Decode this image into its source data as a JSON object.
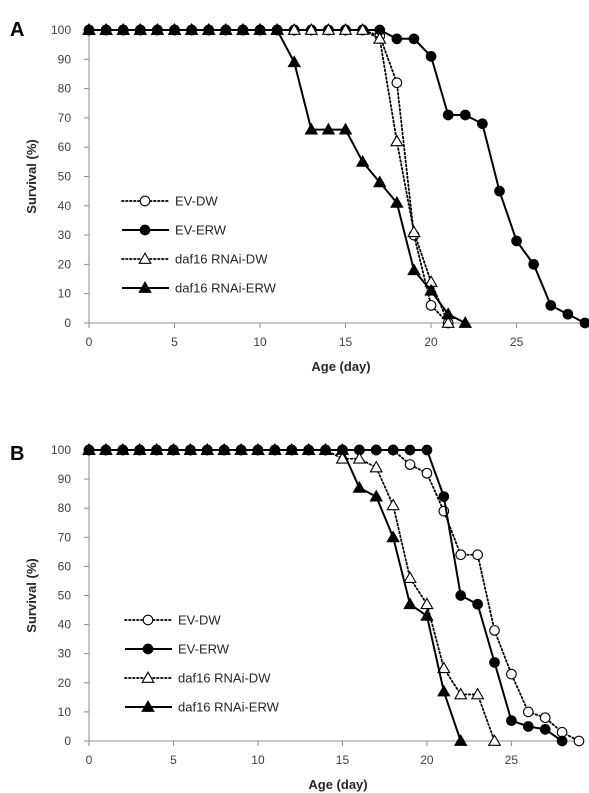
{
  "chart_data": [
    {
      "type": "line",
      "panel_label": "A",
      "xlabel": "Age (day)",
      "ylabel": "Survival (%)",
      "xlim": [
        0,
        29
      ],
      "ylim": [
        0,
        100
      ],
      "xticks": [
        0,
        5,
        10,
        15,
        20,
        25
      ],
      "yticks": [
        0,
        10,
        20,
        30,
        40,
        50,
        60,
        70,
        80,
        90,
        100
      ],
      "grid": false,
      "legend_position": "left-middle",
      "series": [
        {
          "name": "EV-DW",
          "marker": "open-circle",
          "line": "dotted",
          "x": [
            0,
            1,
            2,
            3,
            4,
            5,
            6,
            7,
            8,
            9,
            10,
            11,
            12,
            13,
            14,
            15,
            16,
            17,
            18,
            19,
            20,
            21
          ],
          "y": [
            100,
            100,
            100,
            100,
            100,
            100,
            100,
            100,
            100,
            100,
            100,
            100,
            100,
            100,
            100,
            100,
            100,
            98,
            82,
            30,
            6,
            0
          ]
        },
        {
          "name": "EV-ERW",
          "marker": "filled-circle",
          "line": "solid",
          "x": [
            0,
            1,
            2,
            3,
            4,
            5,
            6,
            7,
            8,
            9,
            10,
            11,
            12,
            13,
            14,
            15,
            16,
            17,
            18,
            19,
            20,
            21,
            22,
            23,
            24,
            25,
            26,
            27,
            28,
            29
          ],
          "y": [
            100,
            100,
            100,
            100,
            100,
            100,
            100,
            100,
            100,
            100,
            100,
            100,
            100,
            100,
            100,
            100,
            100,
            100,
            97,
            97,
            91,
            71,
            71,
            68,
            45,
            28,
            20,
            6,
            3,
            0
          ]
        },
        {
          "name": "daf16 RNAi-DW",
          "marker": "open-triangle",
          "line": "dotted",
          "x": [
            0,
            1,
            2,
            3,
            4,
            5,
            6,
            7,
            8,
            9,
            10,
            11,
            12,
            13,
            14,
            15,
            16,
            17,
            18,
            19,
            20,
            21
          ],
          "y": [
            100,
            100,
            100,
            100,
            100,
            100,
            100,
            100,
            100,
            100,
            100,
            100,
            100,
            100,
            100,
            100,
            100,
            97,
            62,
            31,
            14,
            0
          ]
        },
        {
          "name": "daf16 RNAi-ERW",
          "marker": "filled-triangle",
          "line": "solid",
          "x": [
            0,
            1,
            2,
            3,
            4,
            5,
            6,
            7,
            8,
            9,
            10,
            11,
            12,
            13,
            14,
            15,
            16,
            17,
            18,
            19,
            20,
            21,
            22
          ],
          "y": [
            100,
            100,
            100,
            100,
            100,
            100,
            100,
            100,
            100,
            100,
            100,
            100,
            89,
            66,
            66,
            66,
            55,
            48,
            41,
            18,
            11,
            3,
            0
          ]
        }
      ]
    },
    {
      "type": "line",
      "panel_label": "B",
      "xlabel": "Age (day)",
      "ylabel": "Survival (%)",
      "xlim": [
        0,
        29
      ],
      "ylim": [
        0,
        100
      ],
      "xticks": [
        0,
        5,
        10,
        15,
        20,
        25
      ],
      "yticks": [
        0,
        10,
        20,
        30,
        40,
        50,
        60,
        70,
        80,
        90,
        100
      ],
      "grid": false,
      "legend_position": "left-bottom",
      "series": [
        {
          "name": "EV-DW",
          "marker": "open-circle",
          "line": "dotted",
          "x": [
            0,
            1,
            2,
            3,
            4,
            5,
            6,
            7,
            8,
            9,
            10,
            11,
            12,
            13,
            14,
            15,
            16,
            17,
            18,
            19,
            20,
            21,
            22,
            23,
            24,
            25,
            26,
            27,
            28,
            29
          ],
          "y": [
            100,
            100,
            100,
            100,
            100,
            100,
            100,
            100,
            100,
            100,
            100,
            100,
            100,
            100,
            100,
            100,
            100,
            100,
            100,
            95,
            92,
            79,
            64,
            64,
            38,
            23,
            10,
            8,
            3,
            0
          ]
        },
        {
          "name": "EV-ERW",
          "marker": "filled-circle",
          "line": "solid",
          "x": [
            0,
            1,
            2,
            3,
            4,
            5,
            6,
            7,
            8,
            9,
            10,
            11,
            12,
            13,
            14,
            15,
            16,
            17,
            18,
            19,
            20,
            21,
            22,
            23,
            24,
            25,
            26,
            27,
            28
          ],
          "y": [
            100,
            100,
            100,
            100,
            100,
            100,
            100,
            100,
            100,
            100,
            100,
            100,
            100,
            100,
            100,
            100,
            100,
            100,
            100,
            100,
            100,
            84,
            50,
            47,
            27,
            7,
            5,
            4,
            0
          ]
        },
        {
          "name": "daf16 RNAi-DW",
          "marker": "open-triangle",
          "line": "dotted",
          "x": [
            0,
            1,
            2,
            3,
            4,
            5,
            6,
            7,
            8,
            9,
            10,
            11,
            12,
            13,
            14,
            15,
            16,
            17,
            18,
            19,
            20,
            21,
            22,
            23,
            24
          ],
          "y": [
            100,
            100,
            100,
            100,
            100,
            100,
            100,
            100,
            100,
            100,
            100,
            100,
            100,
            100,
            100,
            97,
            97,
            94,
            81,
            56,
            47,
            25,
            16,
            16,
            0
          ]
        },
        {
          "name": "daf16 RNAi-ERW",
          "marker": "filled-triangle",
          "line": "solid",
          "x": [
            0,
            1,
            2,
            3,
            4,
            5,
            6,
            7,
            8,
            9,
            10,
            11,
            12,
            13,
            14,
            15,
            16,
            17,
            18,
            19,
            20,
            21,
            22
          ],
          "y": [
            100,
            100,
            100,
            100,
            100,
            100,
            100,
            100,
            100,
            100,
            100,
            100,
            100,
            100,
            100,
            100,
            87,
            84,
            70,
            47,
            43,
            17,
            0
          ]
        }
      ]
    }
  ]
}
